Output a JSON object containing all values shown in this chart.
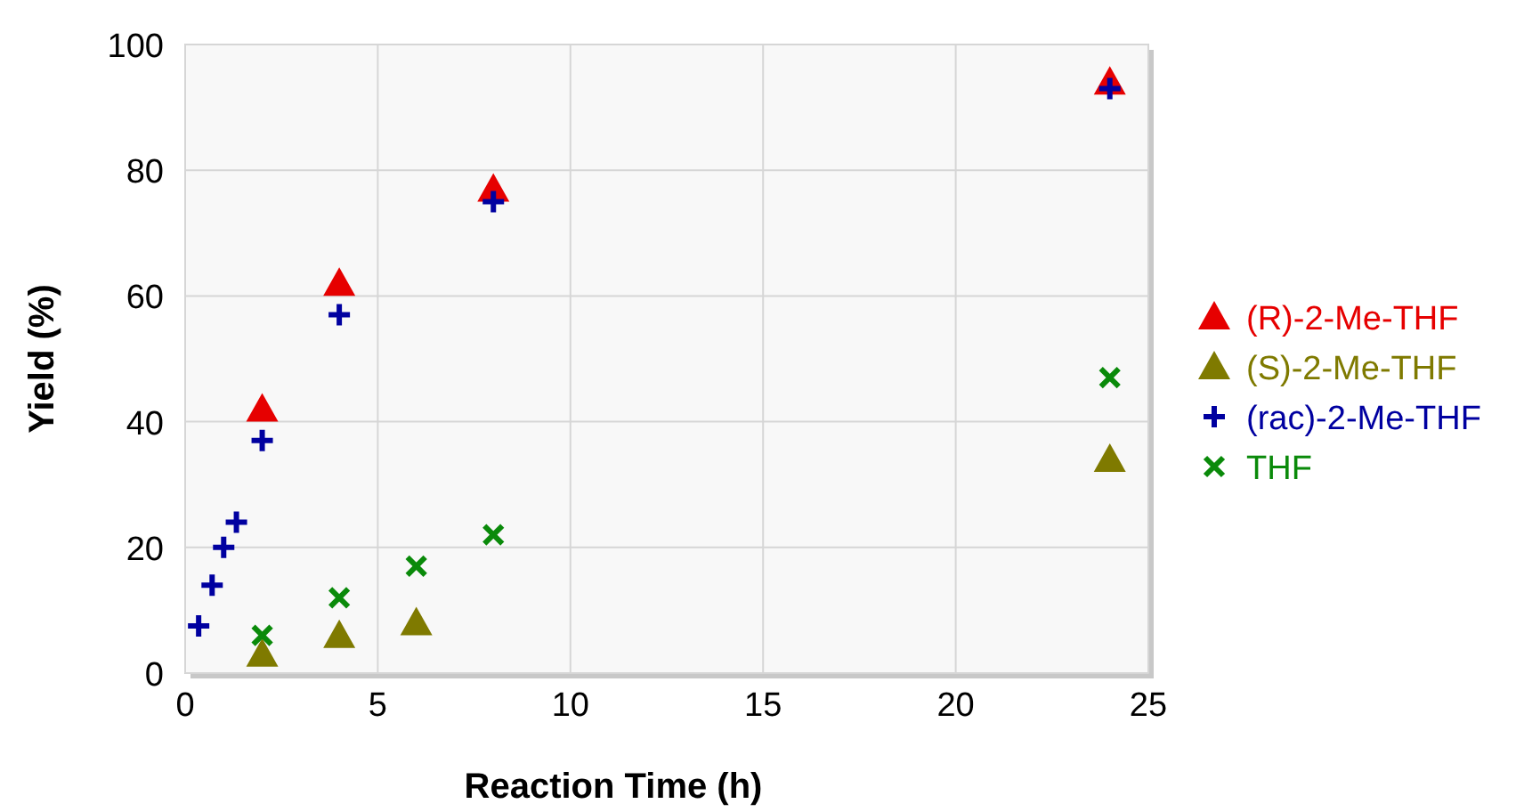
{
  "chart_data": {
    "type": "scatter",
    "xlabel": "Reaction Time (h)",
    "ylabel": "Yield (%)",
    "xlim": [
      0,
      25
    ],
    "xticks": [
      0,
      5,
      10,
      15,
      20,
      25
    ],
    "ylim": [
      0,
      100
    ],
    "yticks": [
      0,
      20,
      40,
      60,
      80,
      100
    ],
    "grid": true,
    "legend": "right",
    "series": [
      {
        "name": "(R)-2-Me-THF",
        "color": "#e60000",
        "marker": "triangle",
        "x": [
          2,
          4,
          8,
          24
        ],
        "values": [
          42,
          62,
          77,
          94
        ]
      },
      {
        "name": "(S)-2-Me-THF",
        "color": "#7f7a00",
        "marker": "triangle",
        "x": [
          2,
          4,
          6,
          24
        ],
        "values": [
          3,
          6,
          8,
          34
        ]
      },
      {
        "name": "(rac)-2-Me-THF",
        "color": "#0000a0",
        "marker": "plus",
        "x": [
          0.35,
          0.7,
          1,
          1.33,
          2,
          4,
          8,
          24
        ],
        "values": [
          7.5,
          14,
          20,
          24,
          37,
          57,
          75,
          93
        ]
      },
      {
        "name": "THF",
        "color": "#0a8a0a",
        "marker": "cross",
        "x": [
          2,
          4,
          6,
          8,
          24
        ],
        "values": [
          6,
          12,
          17,
          22,
          47
        ]
      }
    ]
  }
}
